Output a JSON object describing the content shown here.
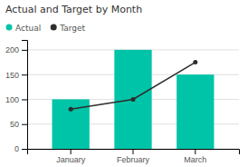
{
  "chart_data": {
    "type": "bar",
    "title": "Actual and Target by Month",
    "categories": [
      "January",
      "February",
      "March"
    ],
    "series": [
      {
        "name": "Actual",
        "type": "bar",
        "color": "#00C4A7",
        "values": [
          100,
          200,
          150
        ]
      },
      {
        "name": "Target",
        "type": "line",
        "color": "#2d2d2d",
        "marker": "circle",
        "values": [
          80,
          100,
          175
        ]
      }
    ],
    "ylim": [
      0,
      220
    ],
    "yticks": [
      0,
      50,
      100,
      150,
      200
    ],
    "grid": true,
    "legend": "upper left"
  }
}
